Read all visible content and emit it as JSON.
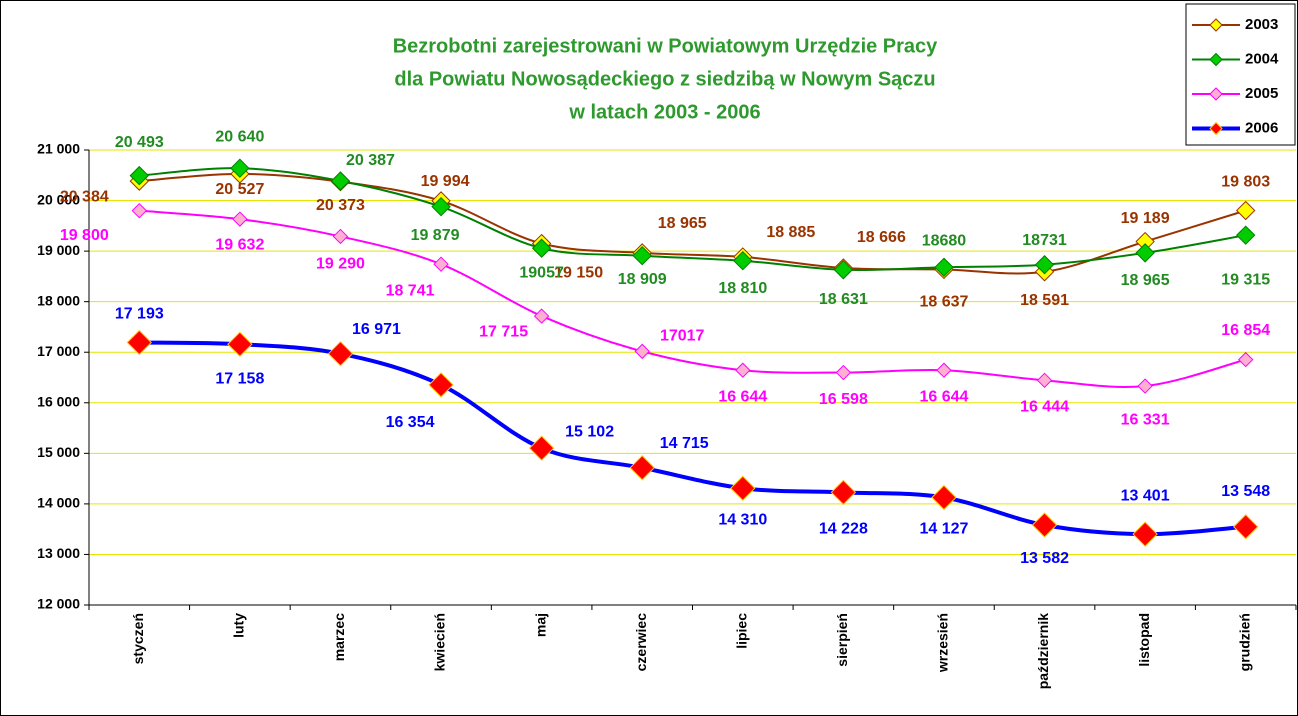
{
  "chart_data": {
    "type": "line",
    "title": [
      "Bezrobotni zarejestrowani w Powiatowym Urzędzie Pracy",
      "dla Powiatu Nowosądeckiego z siedzibą w Nowym Sączu",
      "w latach  2003 -  2006"
    ],
    "categories": [
      "styczeń",
      "luty",
      "marzec",
      "kwiecień",
      "maj",
      "czerwiec",
      "lipiec",
      "sierpień",
      "wrzesień",
      "październik",
      "listopad",
      "grudzień"
    ],
    "ylim": [
      12000,
      21000
    ],
    "yticks": [
      {
        "value": 12000,
        "label": "12 000"
      },
      {
        "value": 13000,
        "label": "13 000"
      },
      {
        "value": 14000,
        "label": "14 000"
      },
      {
        "value": 15000,
        "label": "15 000"
      },
      {
        "value": 16000,
        "label": "16 000"
      },
      {
        "value": 17000,
        "label": "17 000"
      },
      {
        "value": 18000,
        "label": "18 000"
      },
      {
        "value": 19000,
        "label": "19 000"
      },
      {
        "value": 20000,
        "label": "20 000"
      },
      {
        "value": 21000,
        "label": "21 000"
      }
    ],
    "grid": true,
    "legend": "top-right",
    "series": [
      {
        "name": "2003",
        "color": "#993300",
        "marker_color": "#ffff00",
        "label_color": "#993300",
        "values": [
          20384,
          20527,
          20373,
          19994,
          19150,
          18965,
          18885,
          18666,
          18637,
          18591,
          19189,
          19803
        ],
        "value_labels": [
          "20 384",
          "20 527",
          "20 373",
          "19 994",
          "19 150",
          "18 965",
          "18 885",
          "18 666",
          "18 637",
          "18 591",
          "19 189",
          "19 803"
        ]
      },
      {
        "name": "2004",
        "color": "#008000",
        "marker_color": "#00cc00",
        "label_color": "#228b22",
        "values": [
          20493,
          20640,
          20387,
          19879,
          19057,
          18909,
          18810,
          18631,
          18680,
          18731,
          18965,
          19315
        ],
        "value_labels": [
          "20 493",
          "20 640",
          "20 387",
          "19 879",
          "19057",
          "18 909",
          "18 810",
          "18 631",
          "18680",
          "18731",
          "18 965",
          "19 315"
        ]
      },
      {
        "name": "2005",
        "color": "#ff00ff",
        "marker_color": "#ffb0d0",
        "label_color": "#ff00ff",
        "values": [
          19800,
          19632,
          19290,
          18741,
          17715,
          17017,
          16644,
          16598,
          16644,
          16444,
          16331,
          16854
        ],
        "value_labels": [
          "19 800",
          "19 632",
          "19 290",
          "18 741",
          "17 715",
          "17017",
          "16 644",
          "16 598",
          "16 644",
          "16 444",
          "16 331",
          "16 854"
        ]
      },
      {
        "name": "2006",
        "color": "#0000ff",
        "marker_color": "#ff0000",
        "label_color": "#0000ff",
        "values": [
          17193,
          17158,
          16971,
          16354,
          15102,
          14715,
          14310,
          14228,
          14127,
          13582,
          13401,
          13548
        ],
        "value_labels": [
          "17 193",
          "17 158",
          "16 971",
          "16 354",
          "15 102",
          "14 715",
          "14 310",
          "14 228",
          "14 127",
          "13 582",
          "13 401",
          "13 548"
        ]
      }
    ]
  }
}
